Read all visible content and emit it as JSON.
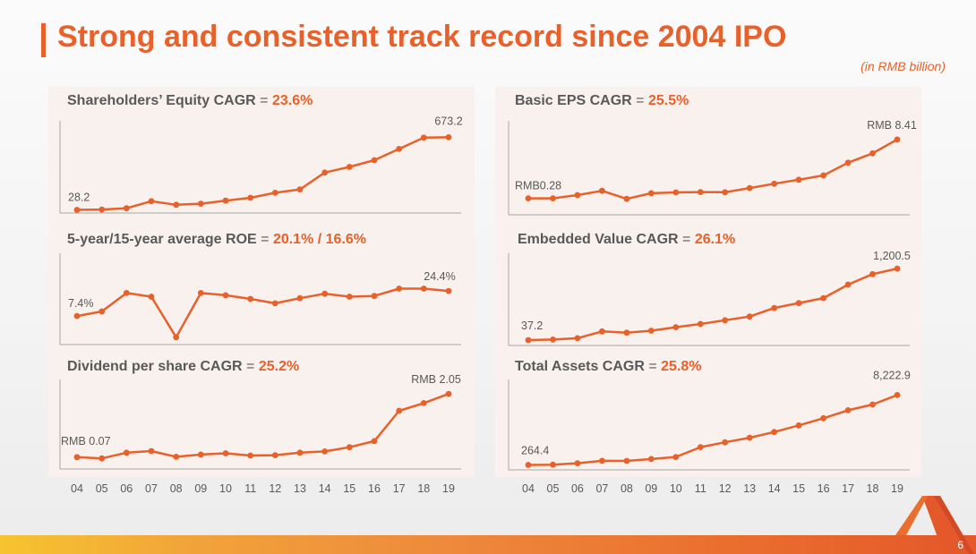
{
  "title": "Strong and consistent track record since 2004 IPO",
  "unit_note": "(in RMB billion)",
  "page_number": "6",
  "colors": {
    "accent": "#e8612a",
    "text": "#595959",
    "panel": "#f8f1ed",
    "axis": "#a6a6a6"
  },
  "chart_data": [
    {
      "type": "line",
      "title": "Shareholders’ Equity CAGR",
      "title_eq": "=",
      "cagr": "23.6%",
      "categories": [
        "04",
        "05",
        "06",
        "07",
        "08",
        "09",
        "10",
        "11",
        "12",
        "13",
        "14",
        "15",
        "16",
        "17",
        "18",
        "19"
      ],
      "values": [
        28.2,
        31,
        42,
        105,
        73,
        83,
        110,
        135,
        180,
        210,
        360,
        410,
        470,
        570,
        670,
        673.2
      ],
      "ylim": [
        0,
        820
      ],
      "first_label": "28.2",
      "last_label": "673.2",
      "color": "#e8612a"
    },
    {
      "type": "line",
      "title": "5-year/15-year average ROE",
      "title_eq": "=",
      "cagr": "20.1% / 16.6%",
      "categories": [
        "04",
        "05",
        "06",
        "07",
        "08",
        "09",
        "10",
        "11",
        "12",
        "13",
        "14",
        "15",
        "16",
        "17",
        "18",
        "19"
      ],
      "values": [
        7.4,
        10.5,
        23,
        20.5,
        -7,
        23,
        21.5,
        19,
        16,
        19.5,
        22.5,
        20.5,
        21,
        26,
        26,
        24.4
      ],
      "ylim": [
        -12,
        50
      ],
      "first_label": "7.4%",
      "last_label": "24.4%",
      "color": "#e8612a"
    },
    {
      "type": "line",
      "title": "Dividend per share CAGR",
      "title_eq": "=",
      "cagr": "25.2%",
      "categories": [
        "04",
        "05",
        "06",
        "07",
        "08",
        "09",
        "10",
        "11",
        "12",
        "13",
        "14",
        "15",
        "16",
        "17",
        "18",
        "19"
      ],
      "values": [
        0.07,
        0.03,
        0.21,
        0.26,
        0.08,
        0.15,
        0.19,
        0.12,
        0.13,
        0.21,
        0.25,
        0.38,
        0.57,
        1.52,
        1.76,
        2.05
      ],
      "ylim": [
        -0.3,
        2.5
      ],
      "first_label": "RMB  0.07",
      "last_label": "RMB  2.05",
      "color": "#e8612a"
    },
    {
      "type": "line",
      "title": "Basic EPS CAGR",
      "title_eq": "=",
      "cagr": "25.5%",
      "categories": [
        "04",
        "05",
        "06",
        "07",
        "08",
        "09",
        "10",
        "11",
        "12",
        "13",
        "14",
        "15",
        "16",
        "17",
        "18",
        "19"
      ],
      "values": [
        0.28,
        0.28,
        0.72,
        1.32,
        0.21,
        0.98,
        1.1,
        1.15,
        1.12,
        1.7,
        2.3,
        2.85,
        3.45,
        5.2,
        6.5,
        8.41
      ],
      "ylim": [
        -2,
        11
      ],
      "first_label": "RMB0.28",
      "last_label": "RMB  8.41",
      "color": "#e8612a"
    },
    {
      "type": "line",
      "title": "Embedded Value CAGR",
      "title_eq": "=",
      "cagr": "26.1%",
      "categories": [
        "04",
        "05",
        "06",
        "07",
        "08",
        "09",
        "10",
        "11",
        "12",
        "13",
        "14",
        "15",
        "16",
        "17",
        "18",
        "19"
      ],
      "values": [
        37.2,
        46,
        68,
        178,
        158,
        190,
        247,
        300,
        360,
        420,
        560,
        640,
        720,
        940,
        1110,
        1200.5
      ],
      "ylim": [
        -50,
        1450
      ],
      "first_label": "37.2",
      "last_label": "1,200.5",
      "color": "#e8612a"
    },
    {
      "type": "line",
      "title": "Total Assets CAGR",
      "title_eq": "=",
      "cagr": "25.8%",
      "categories": [
        "04",
        "05",
        "06",
        "07",
        "08",
        "09",
        "10",
        "11",
        "12",
        "13",
        "14",
        "15",
        "16",
        "17",
        "18",
        "19"
      ],
      "values": [
        264.4,
        290,
        450,
        730,
        720,
        930,
        1170,
        2290,
        2840,
        3360,
        4010,
        4770,
        5580,
        6490,
        7140,
        8222.9
      ],
      "ylim": [
        -300,
        10000
      ],
      "first_label": "264.4",
      "last_label": "8,222.9",
      "color": "#e8612a"
    }
  ]
}
